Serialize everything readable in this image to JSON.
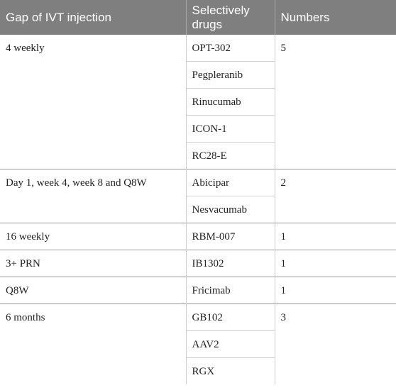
{
  "table": {
    "headers": [
      "Gap of IVT injection",
      "Selectively drugs",
      "Numbers"
    ],
    "groups": [
      {
        "gap": "4 weekly",
        "drugs": [
          "OPT-302",
          "Pegpleranib",
          "Rinucumab",
          "ICON-1",
          "RC28-E"
        ],
        "number": "5"
      },
      {
        "gap": "Day 1, week 4, week 8 and Q8W",
        "drugs": [
          "Abicipar",
          "Nesvacumab"
        ],
        "number": "2"
      },
      {
        "gap": "16 weekly",
        "drugs": [
          "RBM-007"
        ],
        "number": "1"
      },
      {
        "gap": "3+ PRN",
        "drugs": [
          "IB1302"
        ],
        "number": "1"
      },
      {
        "gap": "Q8W",
        "drugs": [
          "Fricimab"
        ],
        "number": "1"
      },
      {
        "gap": "6 months",
        "drugs": [
          "GB102",
          "AAV2",
          "RGX"
        ],
        "number": "3"
      }
    ]
  }
}
